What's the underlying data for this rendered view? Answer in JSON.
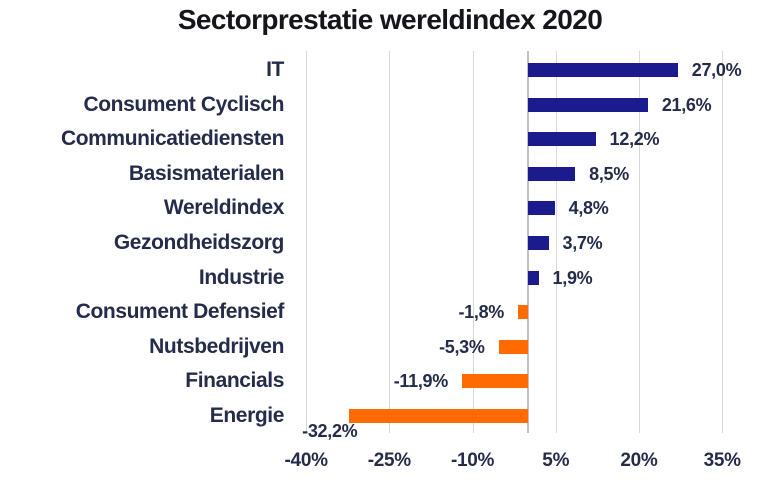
{
  "chart_data": {
    "type": "bar",
    "orientation": "horizontal",
    "title": "Sectorprestatie wereldindex 2020",
    "categories": [
      "IT",
      "Consument Cyclisch",
      "Communicatiediensten",
      "Basismaterialen",
      "Wereldindex",
      "Gezondheidszorg",
      "Industrie",
      "Consument Defensief",
      "Nutsbedrijven",
      "Financials",
      "Energie"
    ],
    "values": [
      27.0,
      21.6,
      12.2,
      8.5,
      4.8,
      3.7,
      1.9,
      -1.8,
      -5.3,
      -11.9,
      -32.2
    ],
    "value_labels": [
      "27,0%",
      "21,6%",
      "12,2%",
      "8,5%",
      "4,8%",
      "3,7%",
      "1,9%",
      "-1,8%",
      "-5,3%",
      "-11,9%",
      "-32,2%"
    ],
    "x_ticks": [
      -40,
      -25,
      -10,
      5,
      20,
      35
    ],
    "x_tick_labels": [
      "-40%",
      "-25%",
      "-10%",
      "5%",
      "20%",
      "35%"
    ],
    "xlim": [
      -40,
      35
    ],
    "grid": true,
    "legend": "none",
    "colors": {
      "bar_positive": "#1B1B8E",
      "bar_negative": "#FF6B00",
      "gridline": "#D9D9D9",
      "zero_line": "#C0C0C0",
      "label_text": "#242C4A",
      "title_text": "#15151C"
    }
  }
}
